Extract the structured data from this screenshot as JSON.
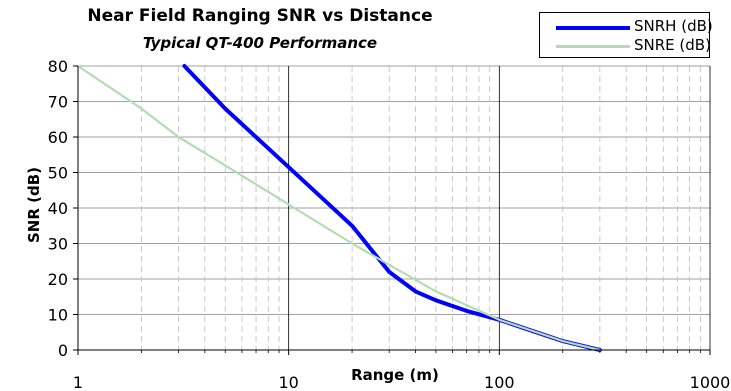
{
  "chart_data": {
    "type": "line",
    "title": "Near Field Ranging SNR vs Distance",
    "subtitle": "Typical QT-400 Performance",
    "xlabel": "Range (m)",
    "ylabel": "SNR (dB)",
    "xscale": "log",
    "xlim": [
      1,
      1000
    ],
    "ylim": [
      0,
      80
    ],
    "xticks": [
      "1",
      "10",
      "100",
      "1000"
    ],
    "yticks": [
      "0",
      "10",
      "20",
      "30",
      "40",
      "50",
      "60",
      "70",
      "80"
    ],
    "grid": true,
    "legend_position": "top-right",
    "series": [
      {
        "name": "SNRH (dB)",
        "color": "#0000ff",
        "x": [
          3.2,
          5,
          10,
          20,
          30,
          40,
          50,
          70,
          100,
          150,
          200,
          300
        ],
        "y": [
          80,
          68,
          51.5,
          35,
          22,
          16.5,
          14,
          11,
          8.5,
          5,
          2.5,
          0
        ]
      },
      {
        "name": "SNRE (dB)",
        "color": "#b3dcb0",
        "x": [
          1,
          2,
          3,
          5,
          10,
          20,
          30,
          50,
          100,
          200,
          300
        ],
        "y": [
          80,
          68,
          60,
          52,
          41,
          30,
          24,
          16.5,
          8.5,
          2.5,
          0
        ]
      }
    ]
  }
}
